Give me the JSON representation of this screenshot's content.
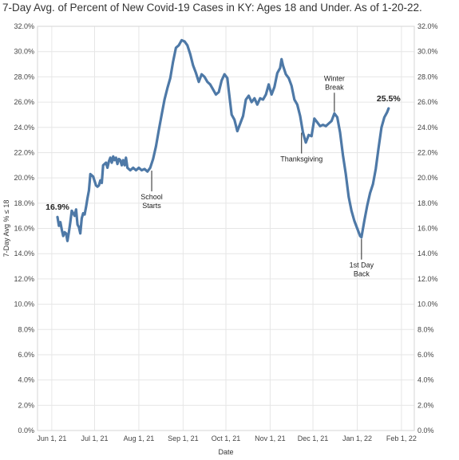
{
  "chart_data": {
    "type": "line",
    "title": "7-Day Avg. of Percent of New Covid-19 Cases in KY: Ages 18 and Under. As of 1-20-22.",
    "xlabel": "Date",
    "ylabel": "7-Day Avg % ≤ 18",
    "ylim": [
      0,
      32
    ],
    "yticks": [
      0,
      2,
      4,
      6,
      8,
      10,
      12,
      14,
      16,
      18,
      20,
      22,
      24,
      26,
      28,
      30,
      32
    ],
    "ytick_suffix": "%",
    "xlim": [
      "2021-05-22",
      "2022-02-10"
    ],
    "xticks": [
      {
        "date": "2021-06-01",
        "label": "Jun 1, 21"
      },
      {
        "date": "2021-07-01",
        "label": "Jul 1, 21"
      },
      {
        "date": "2021-08-01",
        "label": "Aug 1, 21"
      },
      {
        "date": "2021-09-01",
        "label": "Sep 1, 21"
      },
      {
        "date": "2021-10-01",
        "label": "Oct 1, 21"
      },
      {
        "date": "2021-11-01",
        "label": "Nov 1, 21"
      },
      {
        "date": "2021-12-01",
        "label": "Dec 1, 21"
      },
      {
        "date": "2022-01-01",
        "label": "Jan 1, 22"
      },
      {
        "date": "2022-02-01",
        "label": "Feb 1, 22"
      }
    ],
    "grid": true,
    "line_color": "#4e79a7",
    "series": [
      {
        "points": [
          [
            "2021-06-05",
            16.9
          ],
          [
            "2021-06-06",
            16.2
          ],
          [
            "2021-06-07",
            16.5
          ],
          [
            "2021-06-08",
            15.9
          ],
          [
            "2021-06-09",
            15.4
          ],
          [
            "2021-06-10",
            15.7
          ],
          [
            "2021-06-11",
            15.6
          ],
          [
            "2021-06-12",
            15.0
          ],
          [
            "2021-06-13",
            15.7
          ],
          [
            "2021-06-14",
            16.5
          ],
          [
            "2021-06-15",
            17.4
          ],
          [
            "2021-06-16",
            17.2
          ],
          [
            "2021-06-17",
            17.0
          ],
          [
            "2021-06-18",
            17.5
          ],
          [
            "2021-06-19",
            16.3
          ],
          [
            "2021-06-20",
            16.1
          ],
          [
            "2021-06-21",
            15.6
          ],
          [
            "2021-06-22",
            16.8
          ],
          [
            "2021-06-23",
            17.2
          ],
          [
            "2021-06-24",
            17.1
          ],
          [
            "2021-06-25",
            17.7
          ],
          [
            "2021-06-26",
            18.4
          ],
          [
            "2021-06-27",
            19.0
          ],
          [
            "2021-06-28",
            20.3
          ],
          [
            "2021-06-30",
            20.1
          ],
          [
            "2021-07-02",
            19.4
          ],
          [
            "2021-07-03",
            19.3
          ],
          [
            "2021-07-04",
            19.4
          ],
          [
            "2021-07-05",
            19.8
          ],
          [
            "2021-07-06",
            19.6
          ],
          [
            "2021-07-07",
            21.0
          ],
          [
            "2021-07-09",
            21.2
          ],
          [
            "2021-07-10",
            20.8
          ],
          [
            "2021-07-11",
            21.3
          ],
          [
            "2021-07-12",
            21.6
          ],
          [
            "2021-07-13",
            21.2
          ],
          [
            "2021-07-14",
            21.7
          ],
          [
            "2021-07-15",
            21.4
          ],
          [
            "2021-07-16",
            21.6
          ],
          [
            "2021-07-17",
            21.1
          ],
          [
            "2021-07-18",
            21.5
          ],
          [
            "2021-07-19",
            21.4
          ],
          [
            "2021-07-20",
            21.0
          ],
          [
            "2021-07-21",
            21.4
          ],
          [
            "2021-07-22",
            21.0
          ],
          [
            "2021-07-23",
            21.6
          ],
          [
            "2021-07-24",
            20.8
          ],
          [
            "2021-07-26",
            20.6
          ],
          [
            "2021-07-28",
            20.8
          ],
          [
            "2021-07-30",
            20.6
          ],
          [
            "2021-08-01",
            20.8
          ],
          [
            "2021-08-03",
            20.6
          ],
          [
            "2021-08-05",
            20.7
          ],
          [
            "2021-08-07",
            20.5
          ],
          [
            "2021-08-09",
            20.8
          ],
          [
            "2021-08-11",
            21.5
          ],
          [
            "2021-08-13",
            22.5
          ],
          [
            "2021-08-15",
            23.8
          ],
          [
            "2021-08-17",
            25.0
          ],
          [
            "2021-08-19",
            26.2
          ],
          [
            "2021-08-21",
            27.1
          ],
          [
            "2021-08-23",
            27.9
          ],
          [
            "2021-08-25",
            29.2
          ],
          [
            "2021-08-27",
            30.3
          ],
          [
            "2021-08-29",
            30.5
          ],
          [
            "2021-08-31",
            30.9
          ],
          [
            "2021-09-02",
            30.8
          ],
          [
            "2021-09-04",
            30.5
          ],
          [
            "2021-09-06",
            29.8
          ],
          [
            "2021-09-08",
            28.9
          ],
          [
            "2021-09-10",
            28.3
          ],
          [
            "2021-09-12",
            27.6
          ],
          [
            "2021-09-14",
            28.2
          ],
          [
            "2021-09-16",
            28.0
          ],
          [
            "2021-09-18",
            27.6
          ],
          [
            "2021-09-20",
            27.4
          ],
          [
            "2021-09-22",
            27.0
          ],
          [
            "2021-09-24",
            26.6
          ],
          [
            "2021-09-26",
            26.8
          ],
          [
            "2021-09-28",
            27.7
          ],
          [
            "2021-09-30",
            28.2
          ],
          [
            "2021-10-02",
            27.9
          ],
          [
            "2021-10-03",
            26.9
          ],
          [
            "2021-10-05",
            25.0
          ],
          [
            "2021-10-07",
            24.6
          ],
          [
            "2021-10-09",
            23.7
          ],
          [
            "2021-10-11",
            24.3
          ],
          [
            "2021-10-13",
            24.9
          ],
          [
            "2021-10-15",
            26.2
          ],
          [
            "2021-10-17",
            26.5
          ],
          [
            "2021-10-19",
            26.0
          ],
          [
            "2021-10-21",
            26.3
          ],
          [
            "2021-10-23",
            25.8
          ],
          [
            "2021-10-25",
            26.3
          ],
          [
            "2021-10-27",
            26.2
          ],
          [
            "2021-10-29",
            26.6
          ],
          [
            "2021-10-31",
            27.4
          ],
          [
            "2021-11-02",
            26.6
          ],
          [
            "2021-11-04",
            27.2
          ],
          [
            "2021-11-06",
            28.3
          ],
          [
            "2021-11-08",
            28.7
          ],
          [
            "2021-11-09",
            29.4
          ],
          [
            "2021-11-10",
            28.9
          ],
          [
            "2021-11-12",
            28.2
          ],
          [
            "2021-11-14",
            27.9
          ],
          [
            "2021-11-16",
            27.3
          ],
          [
            "2021-11-18",
            26.2
          ],
          [
            "2021-11-20",
            25.8
          ],
          [
            "2021-11-22",
            24.9
          ],
          [
            "2021-11-24",
            23.6
          ],
          [
            "2021-11-26",
            22.8
          ],
          [
            "2021-11-28",
            23.4
          ],
          [
            "2021-11-30",
            23.3
          ],
          [
            "2021-12-02",
            24.7
          ],
          [
            "2021-12-04",
            24.4
          ],
          [
            "2021-12-06",
            24.1
          ],
          [
            "2021-12-08",
            24.2
          ],
          [
            "2021-12-10",
            24.1
          ],
          [
            "2021-12-12",
            24.3
          ],
          [
            "2021-12-14",
            24.5
          ],
          [
            "2021-12-16",
            25.1
          ],
          [
            "2021-12-18",
            24.8
          ],
          [
            "2021-12-20",
            23.6
          ],
          [
            "2021-12-22",
            21.8
          ],
          [
            "2021-12-24",
            20.3
          ],
          [
            "2021-12-26",
            18.5
          ],
          [
            "2021-12-28",
            17.4
          ],
          [
            "2021-12-30",
            16.6
          ],
          [
            "2022-01-01",
            16.0
          ],
          [
            "2022-01-03",
            15.4
          ],
          [
            "2022-01-04",
            15.3
          ],
          [
            "2022-01-06",
            16.6
          ],
          [
            "2022-01-08",
            17.8
          ],
          [
            "2022-01-10",
            18.8
          ],
          [
            "2022-01-12",
            19.5
          ],
          [
            "2022-01-14",
            20.7
          ],
          [
            "2022-01-16",
            22.4
          ],
          [
            "2022-01-18",
            24.0
          ],
          [
            "2022-01-20",
            24.8
          ],
          [
            "2022-01-22",
            25.2
          ],
          [
            "2022-01-23",
            25.5
          ]
        ]
      }
    ],
    "data_labels": [
      {
        "date": "2021-06-05",
        "value": 16.9,
        "text": "16.9%"
      },
      {
        "date": "2022-01-23",
        "value": 25.5,
        "text": "25.5%"
      }
    ],
    "annotations": [
      {
        "date": "2021-08-10",
        "value": 20.7,
        "lines": [
          "School",
          "Starts"
        ],
        "placement": "below"
      },
      {
        "date": "2021-11-23",
        "value": 23.7,
        "lines": [
          "Thanksgiving"
        ],
        "placement": "below"
      },
      {
        "date": "2021-12-16",
        "value": 25.1,
        "lines": [
          "Winter",
          "Break"
        ],
        "placement": "above"
      },
      {
        "date": "2022-01-04",
        "value": 15.3,
        "lines": [
          "1st Day",
          "Back"
        ],
        "placement": "below"
      }
    ]
  }
}
